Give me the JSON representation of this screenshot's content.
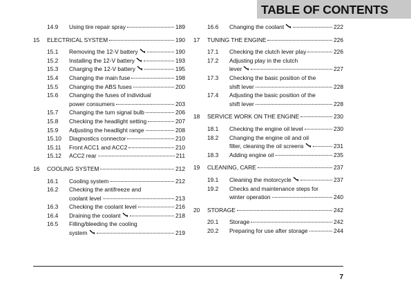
{
  "header": {
    "title": "TABLE OF CONTENTS"
  },
  "columns": [
    [
      {
        "num": "14.9",
        "lines": [
          "Using tire repair spray"
        ],
        "page": "189"
      },
      {
        "num": "15",
        "lines": [
          "ELECTRICAL SYSTEM"
        ],
        "page": "190"
      },
      {
        "num": "15.1",
        "lines": [
          "Removing the 12-V battery"
        ],
        "page": "190",
        "wrench": true
      },
      {
        "num": "15.2",
        "lines": [
          "Installing the 12-V battery"
        ],
        "page": "193",
        "wrench": true
      },
      {
        "num": "15.3",
        "lines": [
          "Charging the 12-V battery"
        ],
        "page": "195",
        "wrench": true
      },
      {
        "num": "15.4",
        "lines": [
          "Changing the main fuse"
        ],
        "page": "198"
      },
      {
        "num": "15.5",
        "lines": [
          "Changing the ABS fuses"
        ],
        "page": "200"
      },
      {
        "num": "15.6",
        "lines": [
          "Changing the fuses of individual",
          "power consumers"
        ],
        "page": "203"
      },
      {
        "num": "15.7",
        "lines": [
          "Changing the turn signal bulb"
        ],
        "page": "206"
      },
      {
        "num": "15.8",
        "lines": [
          "Checking the headlight setting"
        ],
        "page": "207"
      },
      {
        "num": "15.9",
        "lines": [
          "Adjusting the headlight range"
        ],
        "page": "208"
      },
      {
        "num": "15.10",
        "lines": [
          "Diagnostics connector"
        ],
        "page": "210"
      },
      {
        "num": "15.11",
        "lines": [
          "Front ACC1 and ACC2"
        ],
        "page": "210"
      },
      {
        "num": "15.12",
        "lines": [
          "ACC2 rear"
        ],
        "page": "211"
      },
      {
        "num": "16",
        "lines": [
          "COOLING SYSTEM"
        ],
        "page": "212"
      },
      {
        "num": "16.1",
        "lines": [
          "Cooling system"
        ],
        "page": "212"
      },
      {
        "num": "16.2",
        "lines": [
          "Checking the antifreeze and",
          "coolant level"
        ],
        "page": "213"
      },
      {
        "num": "16.3",
        "lines": [
          "Checking the coolant level"
        ],
        "page": "216"
      },
      {
        "num": "16.4",
        "lines": [
          "Draining the coolant"
        ],
        "page": "218",
        "wrench": true
      },
      {
        "num": "16.5",
        "lines": [
          "Filling/bleeding the cooling",
          "system"
        ],
        "page": "219",
        "wrench": true
      }
    ],
    [
      {
        "num": "16.6",
        "lines": [
          "Changing the coolant"
        ],
        "page": "222",
        "wrench": true
      },
      {
        "num": "17",
        "lines": [
          "TUNING THE ENGINE"
        ],
        "page": "226"
      },
      {
        "num": "17.1",
        "lines": [
          "Checking the clutch lever play"
        ],
        "page": "226"
      },
      {
        "num": "17.2",
        "lines": [
          "Adjusting play in the clutch",
          "lever"
        ],
        "page": "227",
        "wrench": true
      },
      {
        "num": "17.3",
        "lines": [
          "Checking the basic position of the",
          "shift lever"
        ],
        "page": "228"
      },
      {
        "num": "17.4",
        "lines": [
          "Adjusting the basic position of the",
          "shift lever"
        ],
        "page": "228"
      },
      {
        "num": "18",
        "lines": [
          "SERVICE WORK ON THE ENGINE"
        ],
        "page": "230"
      },
      {
        "num": "18.1",
        "lines": [
          "Checking the engine oil level"
        ],
        "page": "230"
      },
      {
        "num": "18.2",
        "lines": [
          "Changing the engine oil and oil",
          "filter, cleaning the oil screens"
        ],
        "page": "231",
        "wrench": true
      },
      {
        "num": "18.3",
        "lines": [
          "Adding engine oil"
        ],
        "page": "235"
      },
      {
        "num": "19",
        "lines": [
          "CLEANING, CARE"
        ],
        "page": "237"
      },
      {
        "num": "19.1",
        "lines": [
          "Cleaning the motorcycle"
        ],
        "page": "237",
        "wrench": true
      },
      {
        "num": "19.2",
        "lines": [
          "Checks and maintenance steps for",
          "winter operation"
        ],
        "page": "240"
      },
      {
        "num": "20",
        "lines": [
          "STORAGE"
        ],
        "page": "242"
      },
      {
        "num": "20.1",
        "lines": [
          "Storage"
        ],
        "page": "242"
      },
      {
        "num": "20.2",
        "lines": [
          "Preparing for use after storage"
        ],
        "page": "244"
      }
    ]
  ],
  "page_number": "7"
}
